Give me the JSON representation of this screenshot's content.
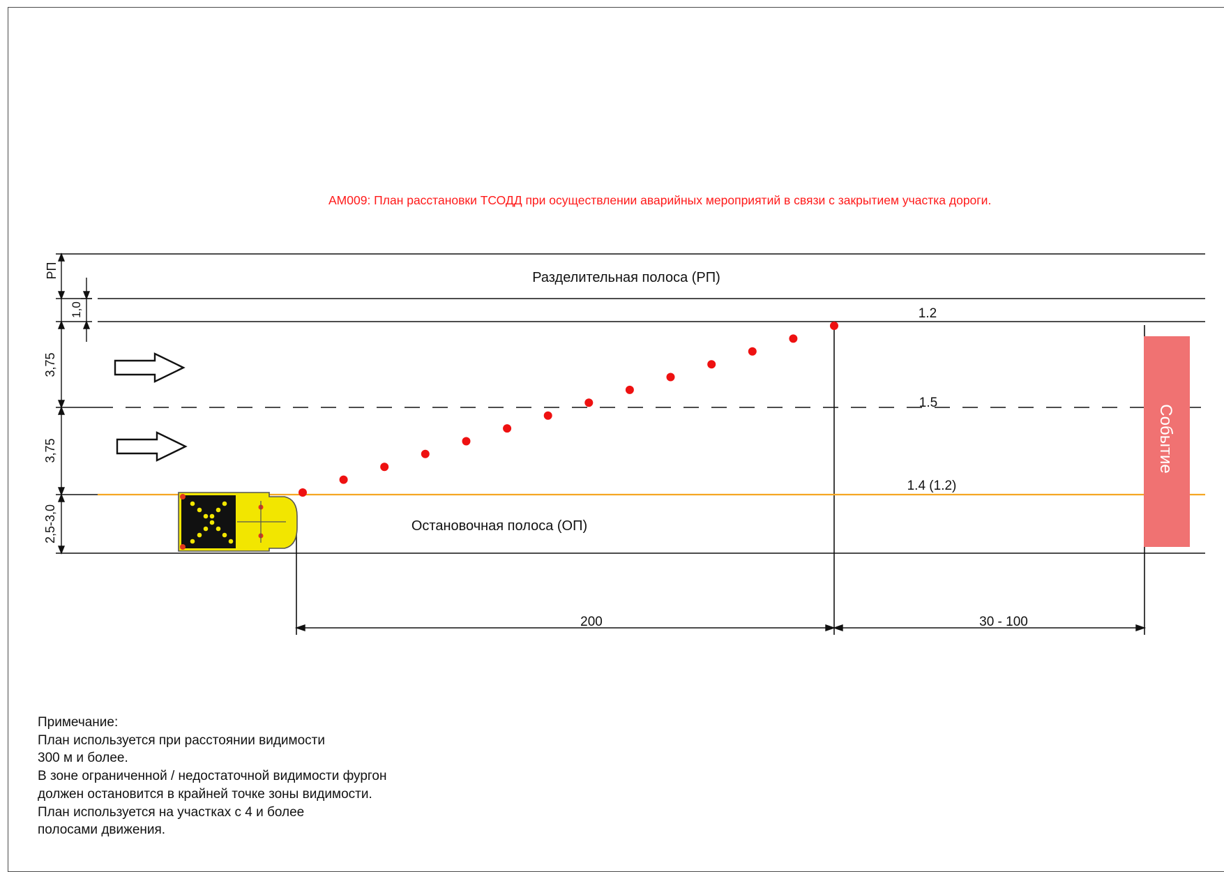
{
  "title": "АМ009: План расстановки ТСОДД при осуществлении аварийных мероприятий в связи с закрытием участка дороги.",
  "colors": {
    "title": "#ff1a1a",
    "cones": "#ee1111",
    "shoulder_line": "#f5a623",
    "event_block": "#f07272",
    "vehicle": "#f2e600",
    "line": "#111111"
  },
  "road": {
    "median_label": "Разделительная полоса (РП)",
    "shoulder_label": "Остановочная полоса (ОП)",
    "event_label": "Событие",
    "marking_top": "1.2",
    "marking_middle": "1.5",
    "marking_bottom": "1.4 (1.2)"
  },
  "dimensions": {
    "median": "РП",
    "gap": "1,0",
    "lane_top": "3,75",
    "lane_bottom": "3,75",
    "shoulder": "2,5-3,0",
    "taper_length": "200",
    "buffer_length": "30 - 100"
  },
  "icons": [
    "arrow-right-icon",
    "arrow-right-icon",
    "warning-vehicle-icon",
    "traffic-cone-icon"
  ],
  "cone_count": 14,
  "note": {
    "lines": [
      "Примечание:",
      "План используется при расстоянии видимости",
      "300 м и более.",
      "В зоне ограниченной / недостаточной видимости фургон",
      "должен остановится в крайней точке зоны видимости.",
      "План используется на участках с 4 и более",
      "полосами движения."
    ]
  }
}
